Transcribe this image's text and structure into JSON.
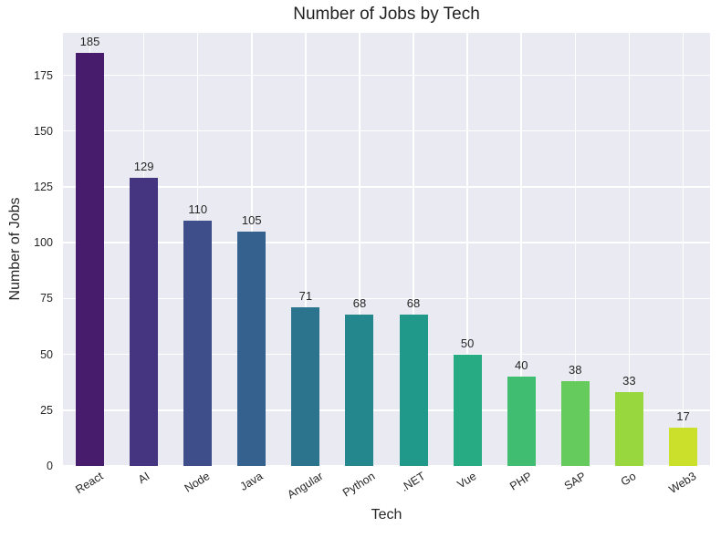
{
  "chart_data": {
    "type": "bar",
    "title": "Number of Jobs by Tech",
    "xlabel": "Tech",
    "ylabel": "Number of Jobs",
    "categories": [
      "React",
      "AI",
      "Node",
      "Java",
      "Angular",
      "Python",
      ".NET",
      "Vue",
      "PHP",
      "SAP",
      "Go",
      "Web3"
    ],
    "values": [
      185,
      129,
      110,
      105,
      71,
      68,
      68,
      50,
      40,
      38,
      33,
      17
    ],
    "yticks": [
      0,
      25,
      50,
      75,
      100,
      125,
      150,
      175
    ],
    "ylim": [
      0,
      194
    ],
    "grid": true,
    "legend_position": "none",
    "x_tick_rotation_deg": 32,
    "bar_labels_shown": true,
    "colors": {
      "palette": [
        "#471c6d",
        "#453581",
        "#3d4e8a",
        "#34618d",
        "#2c748e",
        "#25878e",
        "#21998a",
        "#27ab82",
        "#41bd72",
        "#66cb5d",
        "#98d83e",
        "#cbe02a"
      ],
      "plot_background": "#eaeaf2",
      "figure_background": "#ffffff",
      "gridline": "#ffffff",
      "text": "#262626"
    }
  }
}
